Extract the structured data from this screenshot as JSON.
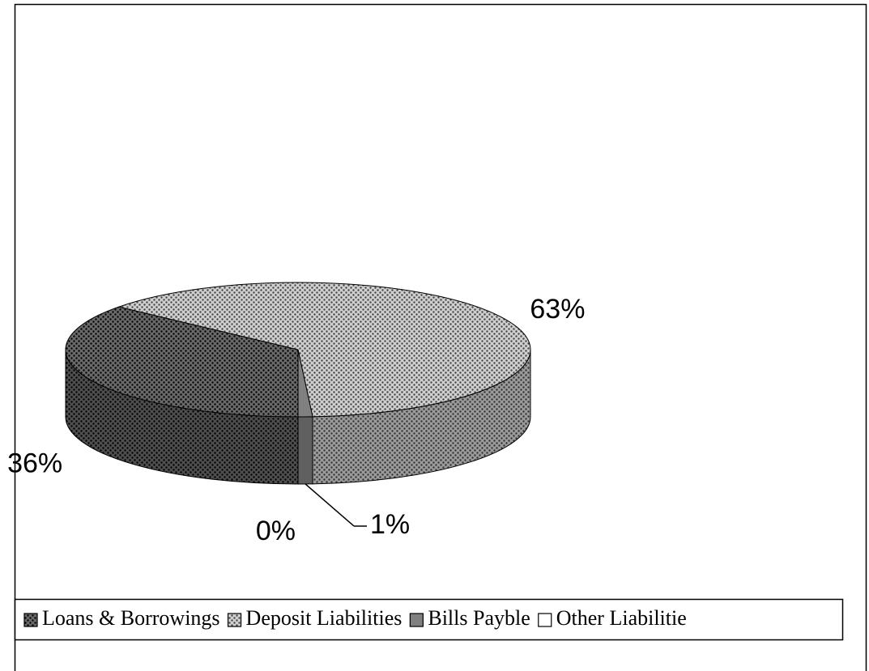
{
  "chart_data": {
    "type": "pie",
    "categories": [
      "Loans & Borrowings",
      "Deposit Liabilities",
      "Bills Payble",
      "Other Liabilitie"
    ],
    "values": [
      36,
      63,
      1,
      0
    ],
    "value_labels": [
      "36%",
      "63%",
      "1%",
      "0%"
    ],
    "colors": [
      "#6a6a6a",
      "#cfcfcf",
      "#808080",
      "#ffffff"
    ],
    "patterned": [
      true,
      true,
      false,
      false
    ]
  }
}
